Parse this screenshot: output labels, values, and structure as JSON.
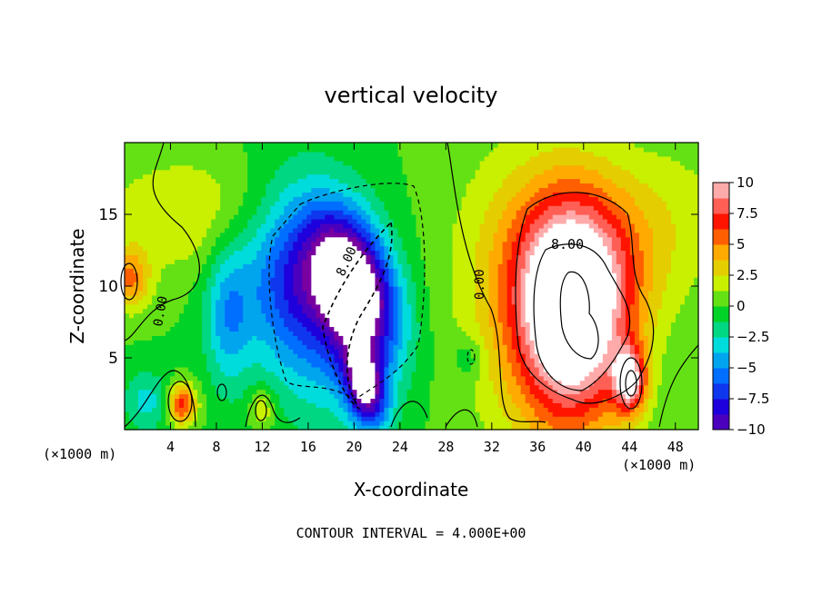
{
  "chart_data": {
    "type": "heatmap",
    "title": "vertical velocity",
    "xlabel": "X-coordinate",
    "ylabel": "Z-coordinate",
    "x_unit_left": "(×1000 m)",
    "x_unit_right": "(×1000 m)",
    "xlim": [
      0,
      50
    ],
    "ylim": [
      0,
      20
    ],
    "x_ticks": [
      4,
      8,
      12,
      16,
      20,
      24,
      28,
      32,
      36,
      40,
      44,
      48
    ],
    "y_ticks": [
      5,
      10,
      15
    ],
    "colorbar": {
      "min": -10,
      "max": 10,
      "ticks": [
        "10",
        "7.5",
        "5",
        "2.5",
        "0",
        "-2.5",
        "-5",
        "-7.5",
        "-10"
      ]
    },
    "contour_labels": [
      "0.00",
      "8.00",
      "0.00",
      "8.00"
    ],
    "footer": "CONTOUR INTERVAL = 4.000E+00",
    "features": [
      {
        "x": 20,
        "z": 10,
        "w": -12,
        "sx": 2.2,
        "sz": 3.6,
        "theta": -0.45
      },
      {
        "x": 21,
        "z": 3,
        "w": -10,
        "sx": 1.2,
        "sz": 2.0,
        "theta": -0.3
      },
      {
        "x": 17,
        "z": 9,
        "w": -6,
        "sx": 4.0,
        "sz": 5.5,
        "theta": -0.3
      },
      {
        "x": 9,
        "z": 8,
        "w": -4,
        "sx": 1.4,
        "sz": 3.5,
        "theta": 0
      },
      {
        "x": 14,
        "z": 11,
        "w": -3,
        "sx": 3.0,
        "sz": 4.0,
        "theta": 0
      },
      {
        "x": 2,
        "z": 2,
        "w": -3,
        "sx": 1.5,
        "sz": 1.5,
        "theta": 0
      },
      {
        "x": 6,
        "z": 15,
        "w": 2.5,
        "sx": 6.0,
        "sz": 3.0,
        "theta": 0
      },
      {
        "x": 0.5,
        "z": 10.5,
        "w": 5,
        "sx": 1.2,
        "sz": 1.5,
        "theta": 0
      },
      {
        "x": 5,
        "z": 1.8,
        "w": 7,
        "sx": 0.9,
        "sz": 1.0,
        "theta": 0
      },
      {
        "x": 12,
        "z": 1.5,
        "w": 3,
        "sx": 0.8,
        "sz": 1.0,
        "theta": 0
      },
      {
        "x": 39,
        "z": 8,
        "w": 13,
        "sx": 3.5,
        "sz": 5.5,
        "theta": 0
      },
      {
        "x": 40,
        "z": 12,
        "w": 3,
        "sx": 5.0,
        "sz": 4.0,
        "theta": 0
      },
      {
        "x": 44,
        "z": 3.5,
        "w": 9,
        "sx": 1.0,
        "sz": 1.6,
        "theta": 0
      },
      {
        "x": 34,
        "z": 10,
        "w": 2,
        "sx": 5.0,
        "sz": 8.0,
        "theta": 0
      },
      {
        "x": 30,
        "z": 5,
        "w": -2,
        "sx": 1.0,
        "sz": 1.0,
        "theta": 0
      },
      {
        "x": 48,
        "z": 15,
        "w": 1.5,
        "sx": 4.0,
        "sz": 4.0,
        "theta": 0
      }
    ]
  }
}
